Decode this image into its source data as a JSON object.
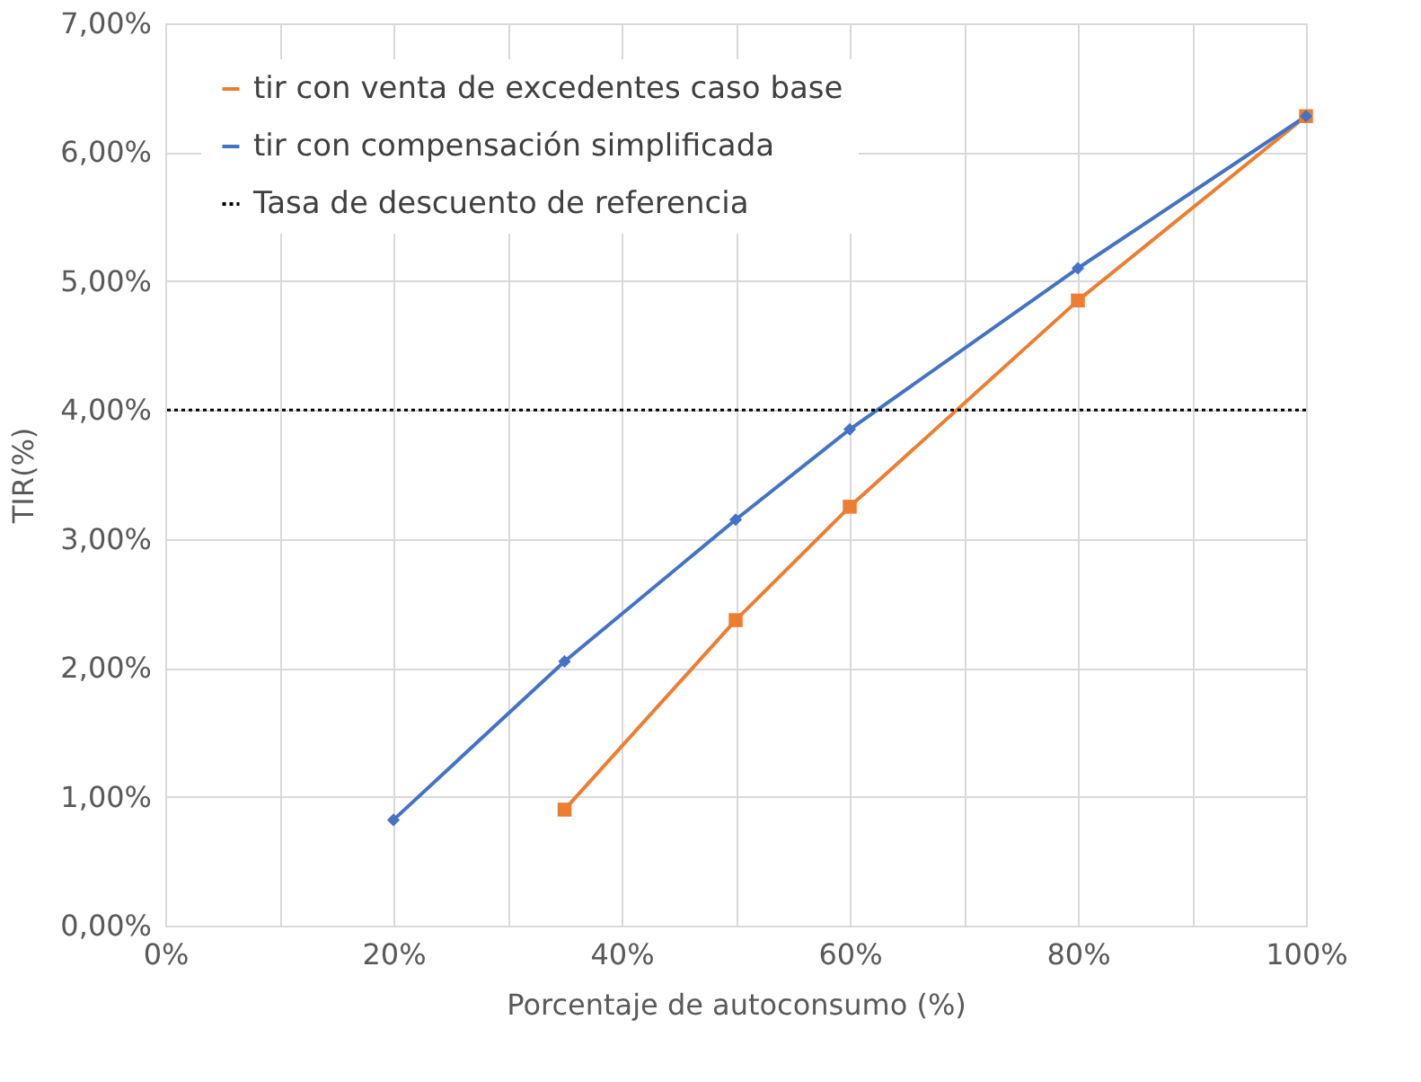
{
  "chart_data": {
    "type": "line",
    "xlabel": "Porcentaje de autoconsumo (%)",
    "ylabel": "TIR(%)",
    "series": [
      {
        "name": "tir con venta de excedentes caso base",
        "color": "#ed7d31",
        "marker": "square",
        "x": [
          35,
          50,
          60,
          80,
          100
        ],
        "values": [
          0.9,
          2.37,
          3.25,
          4.85,
          6.28
        ]
      },
      {
        "name": "tir con compensación simplificada",
        "color": "#4472c4",
        "marker": "diamond",
        "x": [
          20,
          35,
          50,
          60,
          80,
          100
        ],
        "values": [
          0.82,
          2.05,
          3.15,
          3.85,
          5.1,
          6.28
        ]
      }
    ],
    "ref_lines": [
      {
        "axis": "y",
        "value": 4,
        "label": "Tasa de descuento de referencia",
        "color": "#000000",
        "line_style": "dotted"
      }
    ],
    "xlim": [
      0,
      100
    ],
    "xticks": [
      {
        "value": 0,
        "label": "0%"
      },
      {
        "value": 10,
        "label": null
      },
      {
        "value": 20,
        "label": "20%"
      },
      {
        "value": 30,
        "label": null
      },
      {
        "value": 40,
        "label": "40%"
      },
      {
        "value": 50,
        "label": null
      },
      {
        "value": 60,
        "label": "60%"
      },
      {
        "value": 70,
        "label": null
      },
      {
        "value": 80,
        "label": "80%"
      },
      {
        "value": 90,
        "label": null
      },
      {
        "value": 100,
        "label": "100%"
      }
    ],
    "ylim": [
      0,
      7
    ],
    "yticks": [
      {
        "value": 0,
        "label": "0,00%"
      },
      {
        "value": 1,
        "label": "1,00%"
      },
      {
        "value": 2,
        "label": "2,00%"
      },
      {
        "value": 3,
        "label": "3,00%"
      },
      {
        "value": 4,
        "label": "4,00%"
      },
      {
        "value": 5,
        "label": "5,00%"
      },
      {
        "value": 6,
        "label": "6,00%"
      },
      {
        "value": 7,
        "label": "7,00%"
      }
    ],
    "grid": true,
    "legend": "top left",
    "line_style": "solid"
  }
}
